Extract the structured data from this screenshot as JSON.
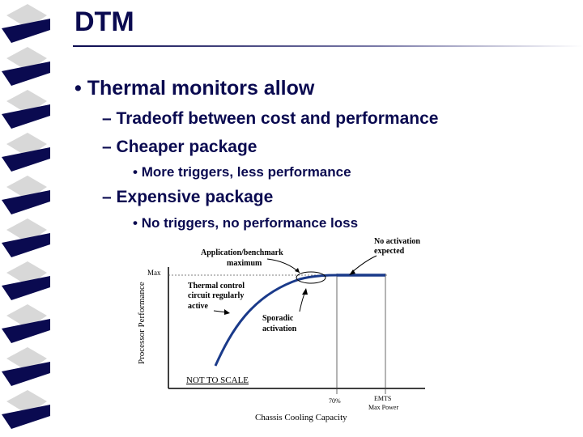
{
  "slide": {
    "title": "DTM",
    "bullets": [
      {
        "level": 1,
        "marker": "•",
        "text": "Thermal monitors allow"
      },
      {
        "level": 2,
        "marker": "–",
        "text": "Tradeoff between cost and performance"
      },
      {
        "level": 2,
        "marker": "–",
        "text": "Cheaper package"
      },
      {
        "level": 3,
        "marker": "•",
        "text": "More triggers, less performance"
      },
      {
        "level": 2,
        "marker": "–",
        "text": "Expensive package"
      },
      {
        "level": 3,
        "marker": "•",
        "text": "No triggers, no performance loss"
      }
    ]
  },
  "colors": {
    "title": "#0a0a50",
    "border_dark": "#0a0a50",
    "border_light": "#d8d8d8",
    "curve": "#1a3a8a",
    "plateau": "#1a3a8a"
  },
  "figure": {
    "y_axis_label": "Processor Performance",
    "y_max_label": "Max",
    "x_axis_label": "Chassis Cooling Capacity",
    "x_tick_70": "70%",
    "x_tick_emts": "EMTS",
    "x_tick_maxpower": "Max Power",
    "annotation_app_line1": "Application/benchmark",
    "annotation_app_line2": "maximum",
    "annotation_thermal_line1": "Thermal control",
    "annotation_thermal_line2": "circuit regularly",
    "annotation_thermal_line3": "active",
    "annotation_sporadic_line1": "Sporadic",
    "annotation_sporadic_line2": "activation",
    "annotation_noact_line1": "No activation",
    "annotation_noact_line2": "expected",
    "scale_note": "NOT TO SCALE"
  }
}
